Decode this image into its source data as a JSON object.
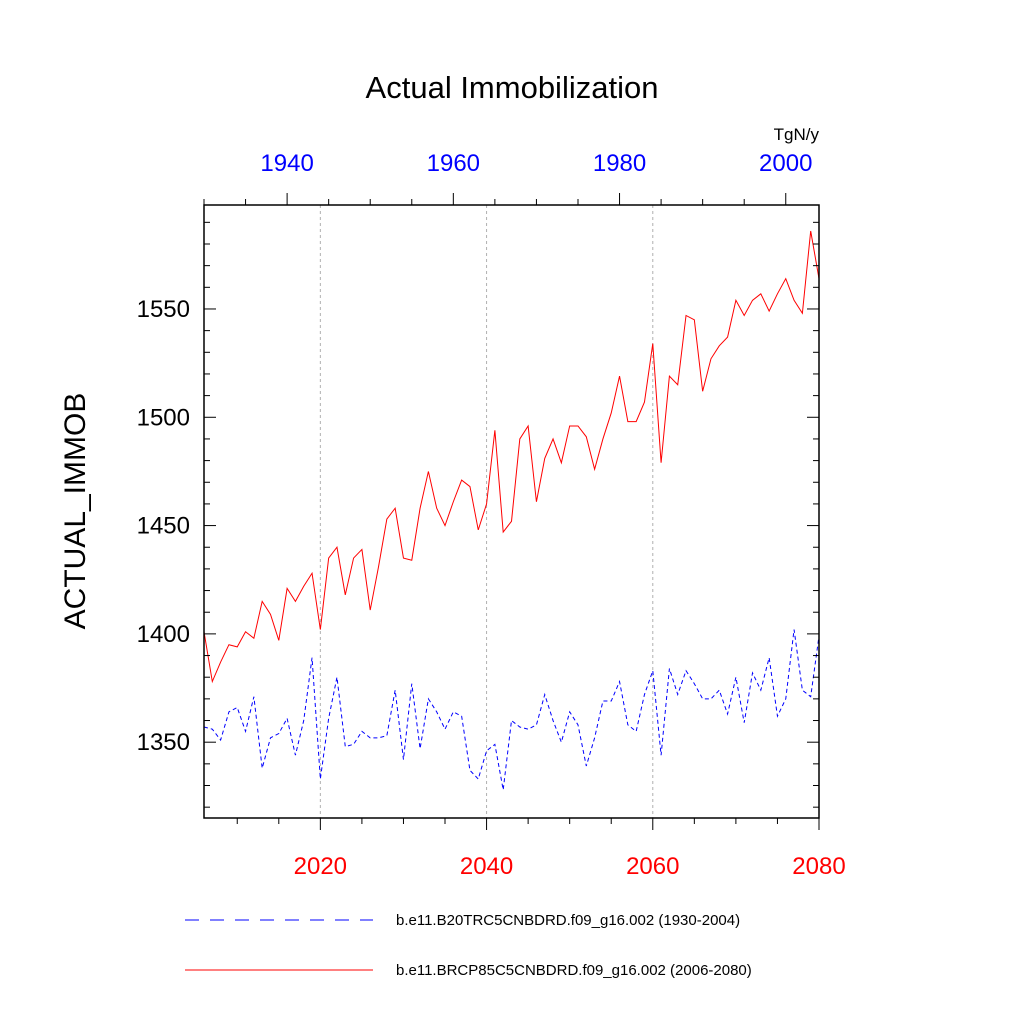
{
  "chart_data": {
    "type": "line",
    "title": "Actual Immobilization",
    "ylabel": "ACTUAL_IMMOB",
    "units": "TgN/y",
    "ylim": [
      1315,
      1598
    ],
    "yticks": [
      1350,
      1400,
      1450,
      1500,
      1550
    ],
    "ytick_labels": [
      "1350",
      "1400",
      "1450",
      "1500",
      "1550"
    ],
    "bottom_axis": {
      "range": [
        2006,
        2080
      ],
      "ticks": [
        2020,
        2040,
        2060,
        2080
      ],
      "tick_labels": [
        "2020",
        "2040",
        "2060",
        "2080"
      ],
      "color": "#ff0000"
    },
    "top_axis": {
      "range": [
        1930,
        2004
      ],
      "ticks": [
        1940,
        1960,
        1980,
        2000
      ],
      "tick_labels": [
        "1940",
        "1960",
        "1980",
        "2000"
      ],
      "color": "#0000ff"
    },
    "grid": "vertical dotted at bottom-axis ticks",
    "series": [
      {
        "name": "b.e11.B20TRC5CNBDRD.f09_g16.002 (1930-2004)",
        "axis": "top",
        "color": "#0000ff",
        "style": "dashed",
        "x_start": 1930,
        "values": [
          1357,
          1356,
          1351,
          1364,
          1366,
          1355,
          1371,
          1338,
          1352,
          1354,
          1361,
          1344,
          1360,
          1389,
          1333,
          1361,
          1380,
          1348,
          1349,
          1355,
          1352,
          1352,
          1353,
          1374,
          1342,
          1377,
          1347,
          1370,
          1364,
          1356,
          1364,
          1362,
          1337,
          1333,
          1346,
          1349,
          1328,
          1360,
          1357,
          1356,
          1358,
          1372,
          1360,
          1350,
          1364,
          1358,
          1339,
          1352,
          1369,
          1369,
          1378,
          1358,
          1355,
          1372,
          1383,
          1344,
          1384,
          1372,
          1383,
          1377,
          1370,
          1370,
          1374,
          1363,
          1380,
          1359,
          1382,
          1374,
          1389,
          1362,
          1370,
          1402,
          1374,
          1371,
          1399
        ]
      },
      {
        "name": "b.e11.BRCP85C5CNBDRD.f09_g16.002 (2006-2080)",
        "axis": "bottom",
        "color": "#ff0000",
        "style": "solid",
        "x_start": 2006,
        "values": [
          1401,
          1378,
          1387,
          1395,
          1394,
          1401,
          1398,
          1415,
          1409,
          1397,
          1421,
          1415,
          1422,
          1428,
          1402,
          1435,
          1440,
          1418,
          1435,
          1439,
          1411,
          1431,
          1453,
          1458,
          1435,
          1434,
          1458,
          1475,
          1458,
          1450,
          1461,
          1471,
          1468,
          1448,
          1460,
          1494,
          1447,
          1452,
          1490,
          1496,
          1461,
          1481,
          1490,
          1479,
          1496,
          1496,
          1491,
          1476,
          1490,
          1502,
          1519,
          1498,
          1498,
          1507,
          1534,
          1479,
          1519,
          1515,
          1547,
          1545,
          1512,
          1527,
          1533,
          1537,
          1554,
          1547,
          1554,
          1557,
          1549,
          1557,
          1564,
          1554,
          1548,
          1586,
          1564
        ]
      }
    ]
  }
}
